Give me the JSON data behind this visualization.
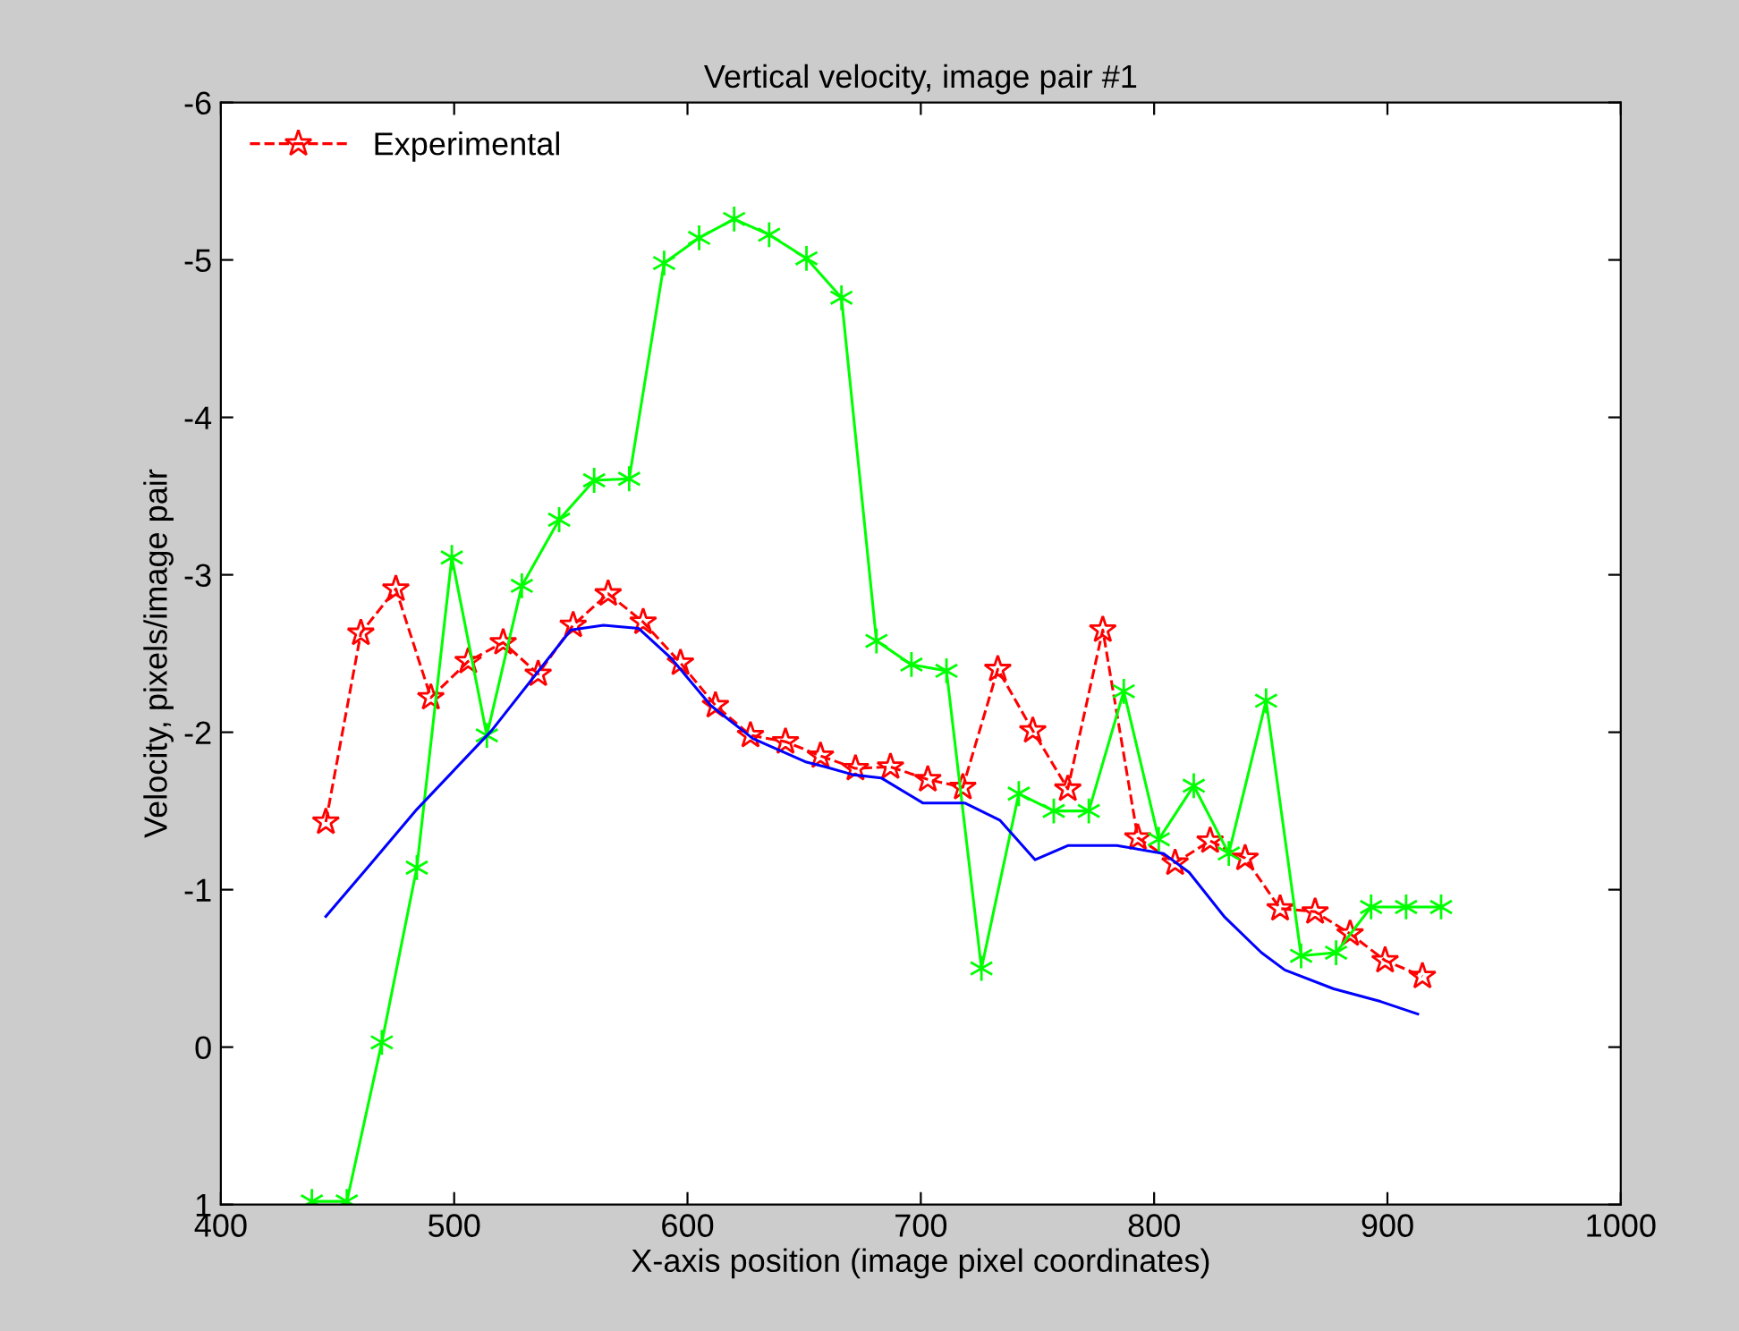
{
  "chart_data": {
    "type": "line",
    "title": "Vertical velocity, image pair #1",
    "xlabel": "X-axis position (image pixel coordinates)",
    "ylabel": "Velocity, pixels/image pair",
    "xlim": [
      400,
      1000
    ],
    "xticks": [
      400,
      500,
      600,
      700,
      800,
      900,
      1000
    ],
    "ylim": [
      1,
      -6
    ],
    "yticks": [
      -6,
      -5,
      -4,
      -3,
      -2,
      -1,
      0,
      1
    ],
    "grid": false,
    "legend": "top left",
    "series": [
      {
        "name": "Experimental",
        "color": "#ff0000",
        "marker": "star",
        "line_style": "dashed",
        "x": [
          445,
          460,
          475,
          490,
          506,
          521,
          536,
          551,
          566,
          581,
          597,
          612,
          627,
          642,
          657,
          672,
          687,
          703,
          718,
          733,
          748,
          763,
          778,
          793,
          809,
          824,
          839,
          854,
          869,
          884,
          899,
          915
        ],
        "values": [
          -1.43,
          -2.63,
          -2.91,
          -2.22,
          -2.45,
          -2.57,
          -2.37,
          -2.68,
          -2.88,
          -2.7,
          -2.44,
          -2.17,
          -1.98,
          -1.94,
          -1.85,
          -1.77,
          -1.78,
          -1.7,
          -1.65,
          -2.4,
          -2.01,
          -1.64,
          -2.65,
          -1.33,
          -1.17,
          -1.31,
          -1.2,
          -0.88,
          -0.86,
          -0.72,
          -0.55,
          -0.45
        ]
      },
      {
        "color": "#00ff00",
        "marker": "cross",
        "line_style": "solid",
        "x": [
          439,
          454,
          469,
          484,
          499,
          514,
          529,
          545,
          560,
          575,
          590,
          605,
          620,
          635,
          651,
          666,
          681,
          696,
          711,
          726,
          742,
          757,
          772,
          787,
          802,
          817,
          832,
          848,
          863,
          878,
          893,
          908,
          923
        ],
        "values": [
          0.98,
          0.98,
          -0.03,
          -1.14,
          -3.11,
          -1.98,
          -2.93,
          -3.35,
          -3.6,
          -3.61,
          -4.98,
          -5.14,
          -5.26,
          -5.16,
          -5.01,
          -4.76,
          -2.58,
          -2.43,
          -2.39,
          -0.5,
          -1.61,
          -1.5,
          -1.5,
          -2.26,
          -1.32,
          -1.66,
          -1.23,
          -2.2,
          -0.58,
          -0.6,
          -0.89,
          -0.89,
          -0.89
        ]
      },
      {
        "color": "#0000ff",
        "marker": "none",
        "line_style": "solid",
        "x": [
          445,
          464,
          484,
          516,
          550,
          564,
          579,
          593,
          610,
          628,
          651,
          659,
          671,
          683,
          701,
          719,
          734,
          749,
          763,
          784,
          804,
          815,
          830,
          846,
          856,
          877,
          897,
          913
        ],
        "values": [
          -0.83,
          -1.16,
          -1.51,
          -2.01,
          -2.65,
          -2.68,
          -2.66,
          -2.47,
          -2.17,
          -1.96,
          -1.81,
          -1.78,
          -1.73,
          -1.71,
          -1.55,
          -1.55,
          -1.44,
          -1.19,
          -1.28,
          -1.28,
          -1.23,
          -1.11,
          -0.83,
          -0.6,
          -0.49,
          -0.37,
          -0.29,
          -0.21
        ]
      }
    ]
  }
}
